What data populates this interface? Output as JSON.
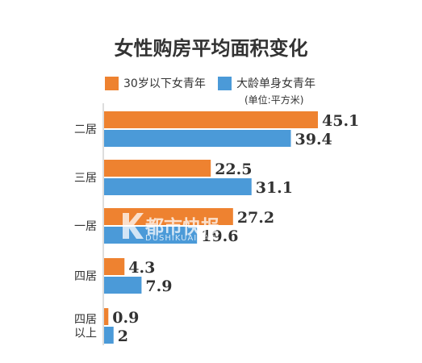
{
  "chart_data": {
    "type": "bar",
    "orientation": "horizontal",
    "title": "女性购房平均面积变化",
    "unit_note": "(单位:平方米)",
    "categories": [
      "二居",
      "三居",
      "一居",
      "四居",
      "四居以上"
    ],
    "category_lines": [
      [
        "二居"
      ],
      [
        "三居"
      ],
      [
        "一居"
      ],
      [
        "四居"
      ],
      [
        "四居",
        "以上"
      ]
    ],
    "series": [
      {
        "name": "30岁以下女青年",
        "color": "#ee8230",
        "values": [
          45.1,
          22.5,
          27.2,
          4.3,
          0.9
        ],
        "labels": [
          "45.1",
          "22.5",
          "27.2",
          "4.3",
          "0.9"
        ]
      },
      {
        "name": "大龄单身女青年",
        "color": "#4b9ad8",
        "values": [
          39.4,
          31.1,
          19.6,
          7.9,
          2
        ],
        "labels": [
          "39.4",
          "31.1",
          "19.6",
          "7.9",
          "2"
        ]
      }
    ],
    "xlim": [
      0,
      45.1
    ],
    "grid": false,
    "legend": "top"
  },
  "watermark": {
    "text": "都市快报",
    "sub": "DUSHIKUAIBAO",
    "icon": "k-logo-icon"
  },
  "colors": {
    "axis": "#bbbbbb",
    "text": "#333333"
  }
}
